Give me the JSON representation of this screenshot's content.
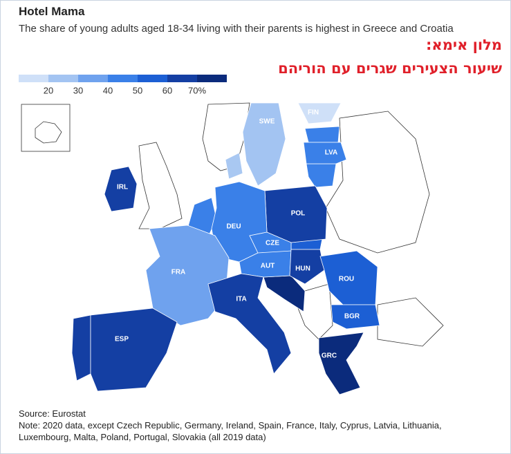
{
  "header": {
    "title": "Hotel Mama",
    "subtitle": "The share of young adults aged 18-34 living with their parents is highest in Greece and Croatia"
  },
  "annotation": [
    "מלון אימא:",
    "שיעור הצעירים שגרים עם הוריהם"
  ],
  "legend": {
    "colors": [
      "#cfe0f8",
      "#a3c4f2",
      "#6fa2ee",
      "#3a80e8",
      "#1c5fd4",
      "#143fa3",
      "#0b2b7c"
    ],
    "ticks": [
      20,
      30,
      40,
      50,
      60,
      {
        "value": 70,
        "label": "70%"
      }
    ]
  },
  "countries": [
    {
      "label": "FIN",
      "value": 17
    },
    {
      "label": "SWE",
      "value": 27
    },
    {
      "label": "LVA",
      "value": 47
    },
    {
      "label": "IRL",
      "value": 62
    },
    {
      "label": "POL",
      "value": 63
    },
    {
      "label": "DEU",
      "value": 45
    },
    {
      "label": "CZE",
      "value": 48
    },
    {
      "label": "AUT",
      "value": 45
    },
    {
      "label": "HUN",
      "value": 66
    },
    {
      "label": "ROU",
      "value": 58
    },
    {
      "label": "BGR",
      "value": 58
    },
    {
      "label": "FRA",
      "value": 38
    },
    {
      "label": "ITA",
      "value": 66
    },
    {
      "label": "ESP",
      "value": 65
    },
    {
      "label": "GRC",
      "value": 72
    }
  ],
  "footer": {
    "source": "Source: Eurostat",
    "note": "Note: 2020 data, except Czech Republic, Germany, Ireland, Spain, France, Italy, Cyprus, Latvia, Lithuania, Luxembourg, Malta, Poland, Portugal, Slovakia (all 2019 data)"
  }
}
